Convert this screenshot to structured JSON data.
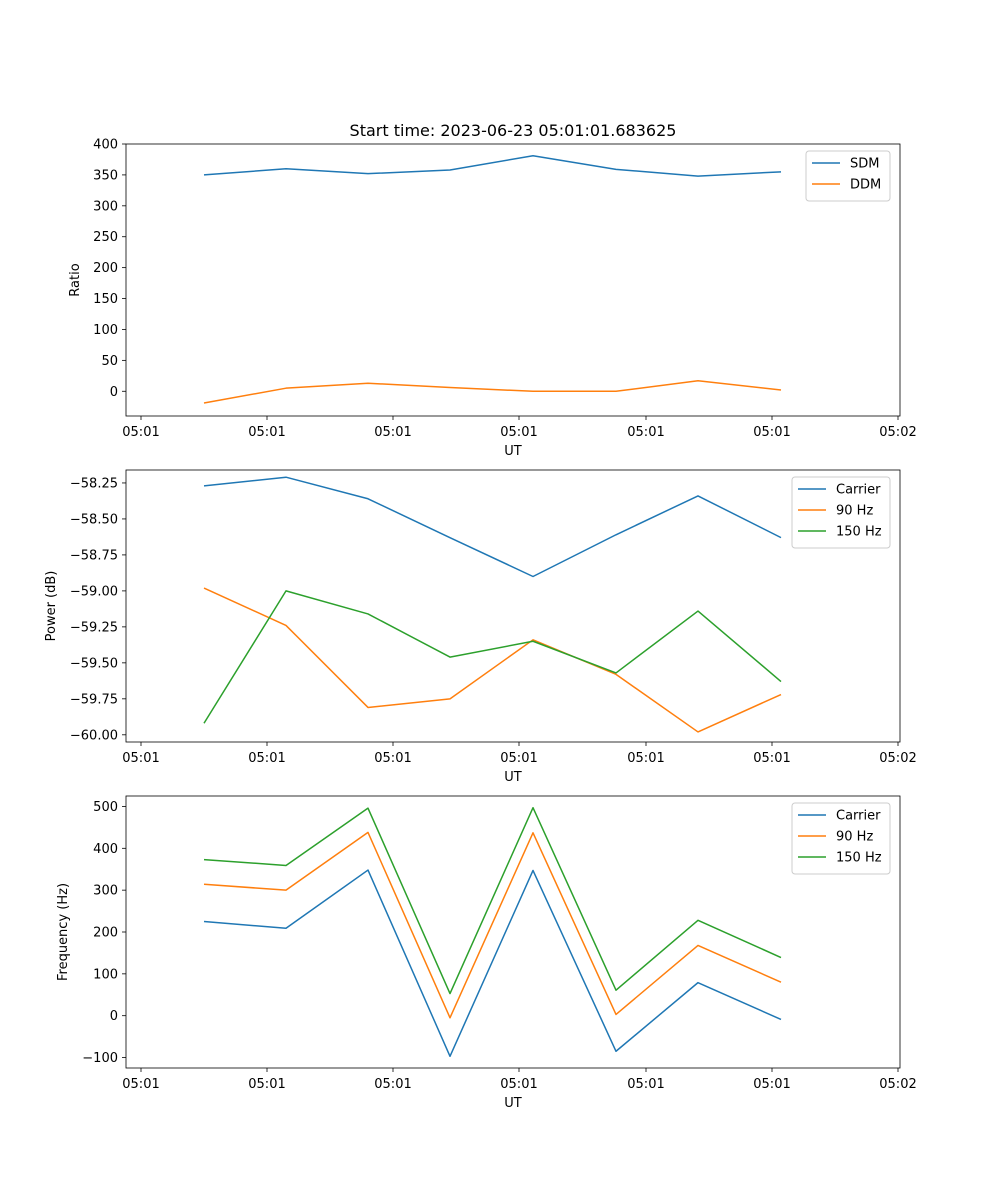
{
  "figure_title": "Start time: 2023-06-23 05:01:01.683625",
  "chart_data": [
    {
      "type": "line",
      "title": "Start time: 2023-06-23 05:01:01.683625",
      "xlabel": "UT",
      "ylabel": "Ratio",
      "x_tick_labels": [
        "05:01",
        "05:01",
        "05:01",
        "05:01",
        "05:01",
        "05:01",
        "05:02"
      ],
      "y_ticks": [
        0,
        50,
        100,
        150,
        200,
        250,
        300,
        350,
        400
      ],
      "ylim": [
        -40,
        400
      ],
      "legend_position": "top-right",
      "series": [
        {
          "name": "SDM",
          "color": "#1f77b4",
          "values": [
            350,
            360,
            352,
            358,
            381,
            359,
            348,
            355
          ]
        },
        {
          "name": "DDM",
          "color": "#ff7f0e",
          "values": [
            -19,
            5,
            13,
            6,
            0,
            0,
            17,
            2
          ]
        }
      ]
    },
    {
      "type": "line",
      "title": "",
      "xlabel": "UT",
      "ylabel": "Power (dB)",
      "x_tick_labels": [
        "05:01",
        "05:01",
        "05:01",
        "05:01",
        "05:01",
        "05:01",
        "05:02"
      ],
      "y_ticks": [
        -60.0,
        -59.75,
        -59.5,
        -59.25,
        -59.0,
        -58.75,
        -58.5,
        -58.25
      ],
      "y_tick_labels": [
        "−60.00",
        "−59.75",
        "−59.50",
        "−59.25",
        "−59.00",
        "−58.75",
        "−58.50",
        "−58.25"
      ],
      "ylim": [
        -60.05,
        -58.16
      ],
      "legend_position": "top-right",
      "series": [
        {
          "name": "Carrier",
          "color": "#1f77b4",
          "values": [
            -58.27,
            -58.21,
            -58.36,
            -58.63,
            -58.9,
            -58.61,
            -58.34,
            -58.63
          ]
        },
        {
          "name": "90 Hz",
          "color": "#ff7f0e",
          "values": [
            -58.98,
            -59.24,
            -59.81,
            -59.75,
            -59.34,
            -59.58,
            -59.98,
            -59.72
          ]
        },
        {
          "name": "150 Hz",
          "color": "#2ca02c",
          "values": [
            -59.92,
            -59.0,
            -59.16,
            -59.46,
            -59.35,
            -59.57,
            -59.14,
            -59.63
          ]
        }
      ]
    },
    {
      "type": "line",
      "title": "",
      "xlabel": "UT",
      "ylabel": "Frequency (Hz)",
      "x_tick_labels": [
        "05:01",
        "05:01",
        "05:01",
        "05:01",
        "05:01",
        "05:01",
        "05:02"
      ],
      "y_ticks": [
        -100,
        0,
        100,
        200,
        300,
        400,
        500
      ],
      "y_tick_labels": [
        "−100",
        "0",
        "100",
        "200",
        "300",
        "400",
        "500"
      ],
      "ylim": [
        -125,
        525
      ],
      "legend_position": "top-right",
      "series": [
        {
          "name": "Carrier",
          "color": "#1f77b4",
          "values": [
            225,
            209,
            348,
            -97,
            347,
            -85,
            79,
            -9
          ]
        },
        {
          "name": "90 Hz",
          "color": "#ff7f0e",
          "values": [
            314,
            300,
            438,
            -5,
            437,
            3,
            168,
            80
          ]
        },
        {
          "name": "150 Hz",
          "color": "#2ca02c",
          "values": [
            373,
            359,
            496,
            53,
            497,
            61,
            228,
            139
          ]
        }
      ]
    }
  ]
}
